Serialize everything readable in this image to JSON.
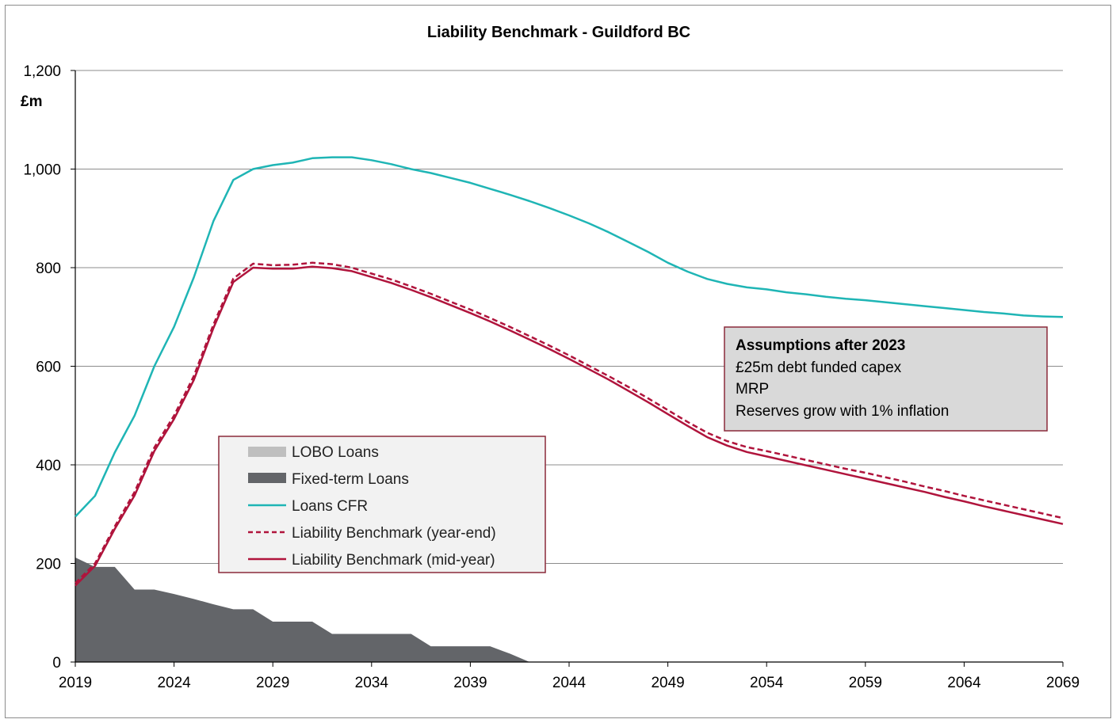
{
  "chart_data": {
    "type": "line",
    "title": "Liability Benchmark - Guildford BC",
    "ylabel": "£m",
    "xlabel": "",
    "xlim": [
      2019,
      2069
    ],
    "ylim": [
      0,
      1200
    ],
    "x_ticks": [
      "2019",
      "2024",
      "2029",
      "2034",
      "2039",
      "2044",
      "2049",
      "2054",
      "2059",
      "2064",
      "2069"
    ],
    "y_ticks": [
      "0",
      "200",
      "400",
      "600",
      "800",
      "1,000",
      "1,200"
    ],
    "grid": true,
    "legend_position": "center-left",
    "colors": {
      "lobo": "#bfbfbf",
      "fixed": "#636569",
      "cfr": "#1fb5b5",
      "lb": "#b0143c"
    },
    "legend": [
      {
        "key": "lobo",
        "label": "LOBO Loans",
        "style": "area"
      },
      {
        "key": "fixed",
        "label": "Fixed-term Loans",
        "style": "area"
      },
      {
        "key": "cfr",
        "label": "Loans CFR",
        "style": "line"
      },
      {
        "key": "lb_ye",
        "label": "Liability Benchmark (year-end)",
        "style": "dashed"
      },
      {
        "key": "lb_my",
        "label": "Liability Benchmark (mid-year)",
        "style": "line"
      }
    ],
    "series": [
      {
        "key": "lobo",
        "name": "LOBO Loans",
        "type": "area",
        "points": [
          [
            2019,
            0
          ],
          [
            2069,
            0
          ]
        ]
      },
      {
        "key": "fixed",
        "name": "Fixed-term Loans",
        "type": "area",
        "points": [
          [
            2019,
            212
          ],
          [
            2020,
            193
          ],
          [
            2021,
            193
          ],
          [
            2022,
            147
          ],
          [
            2023,
            147
          ],
          [
            2024,
            138
          ],
          [
            2025,
            128
          ],
          [
            2026,
            117
          ],
          [
            2027,
            107
          ],
          [
            2028,
            107
          ],
          [
            2029,
            82
          ],
          [
            2030,
            82
          ],
          [
            2031,
            82
          ],
          [
            2032,
            57
          ],
          [
            2033,
            57
          ],
          [
            2034,
            57
          ],
          [
            2035,
            57
          ],
          [
            2036,
            57
          ],
          [
            2037,
            32
          ],
          [
            2038,
            32
          ],
          [
            2039,
            32
          ],
          [
            2040,
            32
          ],
          [
            2041,
            17
          ],
          [
            2042,
            0
          ]
        ]
      },
      {
        "key": "cfr",
        "name": "Loans CFR",
        "type": "line",
        "points": [
          [
            2019,
            295
          ],
          [
            2020,
            337
          ],
          [
            2021,
            425
          ],
          [
            2022,
            500
          ],
          [
            2023,
            600
          ],
          [
            2024,
            680
          ],
          [
            2025,
            780
          ],
          [
            2026,
            895
          ],
          [
            2027,
            978
          ],
          [
            2028,
            1000
          ],
          [
            2029,
            1008
          ],
          [
            2030,
            1013
          ],
          [
            2031,
            1022
          ],
          [
            2032,
            1024
          ],
          [
            2033,
            1024
          ],
          [
            2034,
            1018
          ],
          [
            2035,
            1010
          ],
          [
            2036,
            1000
          ],
          [
            2037,
            992
          ],
          [
            2038,
            982
          ],
          [
            2039,
            972
          ],
          [
            2040,
            960
          ],
          [
            2041,
            948
          ],
          [
            2042,
            935
          ],
          [
            2043,
            921
          ],
          [
            2044,
            906
          ],
          [
            2045,
            890
          ],
          [
            2046,
            872
          ],
          [
            2047,
            852
          ],
          [
            2048,
            832
          ],
          [
            2049,
            810
          ],
          [
            2050,
            792
          ],
          [
            2051,
            777
          ],
          [
            2052,
            767
          ],
          [
            2053,
            760
          ],
          [
            2054,
            756
          ],
          [
            2055,
            750
          ],
          [
            2056,
            746
          ],
          [
            2057,
            741
          ],
          [
            2058,
            737
          ],
          [
            2059,
            734
          ],
          [
            2060,
            730
          ],
          [
            2061,
            726
          ],
          [
            2062,
            722
          ],
          [
            2063,
            718
          ],
          [
            2064,
            714
          ],
          [
            2065,
            710
          ],
          [
            2066,
            707
          ],
          [
            2067,
            703
          ],
          [
            2068,
            701
          ],
          [
            2069,
            700
          ]
        ]
      },
      {
        "key": "lb_ye",
        "name": "Liability Benchmark (year-end)",
        "type": "dashed",
        "points": [
          [
            2019,
            160
          ],
          [
            2020,
            200
          ],
          [
            2021,
            275
          ],
          [
            2022,
            345
          ],
          [
            2023,
            435
          ],
          [
            2024,
            500
          ],
          [
            2025,
            580
          ],
          [
            2026,
            685
          ],
          [
            2027,
            778
          ],
          [
            2028,
            808
          ],
          [
            2029,
            805
          ],
          [
            2030,
            806
          ],
          [
            2031,
            810
          ],
          [
            2032,
            807
          ],
          [
            2033,
            800
          ],
          [
            2034,
            788
          ],
          [
            2035,
            776
          ],
          [
            2036,
            762
          ],
          [
            2037,
            747
          ],
          [
            2038,
            731
          ],
          [
            2039,
            715
          ],
          [
            2040,
            698
          ],
          [
            2041,
            680
          ],
          [
            2042,
            661
          ],
          [
            2043,
            642
          ],
          [
            2044,
            622
          ],
          [
            2045,
            601
          ],
          [
            2046,
            580
          ],
          [
            2047,
            558
          ],
          [
            2048,
            535
          ],
          [
            2049,
            511
          ],
          [
            2050,
            487
          ],
          [
            2051,
            465
          ],
          [
            2052,
            448
          ],
          [
            2053,
            436
          ],
          [
            2054,
            428
          ],
          [
            2055,
            419
          ],
          [
            2056,
            410
          ],
          [
            2057,
            401
          ],
          [
            2058,
            392
          ],
          [
            2059,
            384
          ],
          [
            2060,
            375
          ],
          [
            2061,
            366
          ],
          [
            2062,
            356
          ],
          [
            2063,
            347
          ],
          [
            2064,
            337
          ],
          [
            2065,
            328
          ],
          [
            2066,
            319
          ],
          [
            2067,
            310
          ],
          [
            2068,
            301
          ],
          [
            2069,
            292
          ]
        ]
      },
      {
        "key": "lb_my",
        "name": "Liability Benchmark (mid-year)",
        "type": "line",
        "points": [
          [
            2019,
            155
          ],
          [
            2020,
            195
          ],
          [
            2021,
            270
          ],
          [
            2022,
            338
          ],
          [
            2023,
            428
          ],
          [
            2024,
            493
          ],
          [
            2025,
            572
          ],
          [
            2026,
            678
          ],
          [
            2027,
            771
          ],
          [
            2028,
            800
          ],
          [
            2029,
            798
          ],
          [
            2030,
            798
          ],
          [
            2031,
            802
          ],
          [
            2032,
            799
          ],
          [
            2033,
            793
          ],
          [
            2034,
            781
          ],
          [
            2035,
            769
          ],
          [
            2036,
            755
          ],
          [
            2037,
            740
          ],
          [
            2038,
            724
          ],
          [
            2039,
            708
          ],
          [
            2040,
            691
          ],
          [
            2041,
            673
          ],
          [
            2042,
            654
          ],
          [
            2043,
            635
          ],
          [
            2044,
            615
          ],
          [
            2045,
            594
          ],
          [
            2046,
            573
          ],
          [
            2047,
            550
          ],
          [
            2048,
            527
          ],
          [
            2049,
            503
          ],
          [
            2050,
            479
          ],
          [
            2051,
            456
          ],
          [
            2052,
            439
          ],
          [
            2053,
            426
          ],
          [
            2054,
            417
          ],
          [
            2055,
            408
          ],
          [
            2056,
            399
          ],
          [
            2057,
            390
          ],
          [
            2058,
            381
          ],
          [
            2059,
            372
          ],
          [
            2060,
            363
          ],
          [
            2061,
            354
          ],
          [
            2062,
            345
          ],
          [
            2063,
            335
          ],
          [
            2064,
            326
          ],
          [
            2065,
            316
          ],
          [
            2066,
            307
          ],
          [
            2067,
            298
          ],
          [
            2068,
            289
          ],
          [
            2069,
            280
          ]
        ]
      }
    ],
    "annotation": {
      "title": "Assumptions after 2023",
      "lines": [
        "£25m debt funded capex",
        "MRP",
        "Reserves grow with 1% inflation"
      ],
      "background": "#d9d9d9",
      "border": "#8b2a3a"
    }
  }
}
